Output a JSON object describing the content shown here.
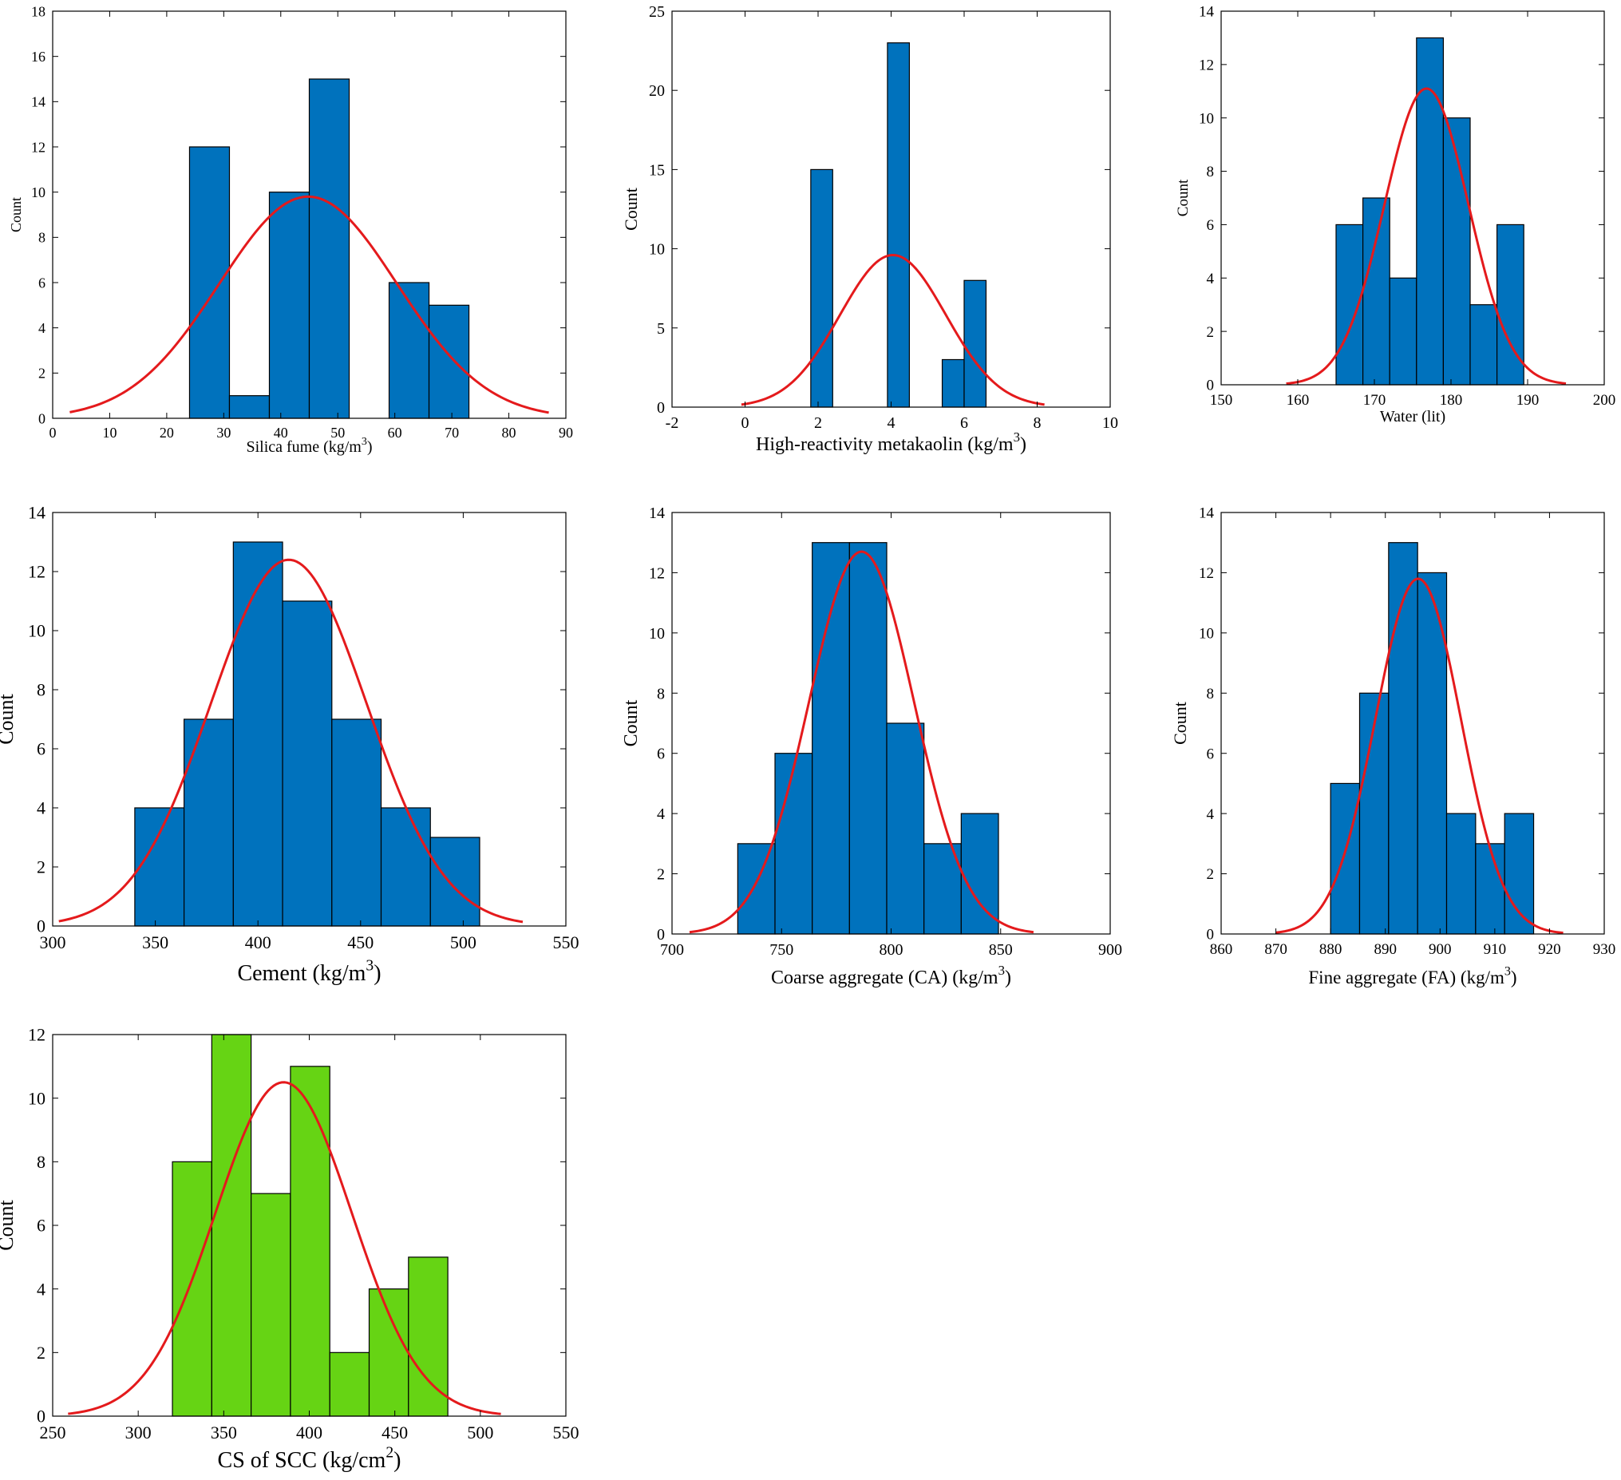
{
  "colors": {
    "bar_blue": "#0072BD",
    "bar_green": "#66D414",
    "curve": "#E41A1C",
    "edge": "#000000"
  },
  "chart_data": [
    {
      "id": "silica-fume",
      "type": "bar",
      "xlabel": "Silica fume (kg/m",
      "xlabel_sup": "3",
      "xlabel_post": ")",
      "ylabel": "Count",
      "xlim": [
        0,
        90
      ],
      "ylim": [
        0,
        18
      ],
      "xticks": [
        0,
        10,
        20,
        30,
        40,
        50,
        60,
        70,
        80,
        90
      ],
      "yticks": [
        0,
        2,
        4,
        6,
        8,
        10,
        12,
        14,
        16,
        18
      ],
      "bins": [
        {
          "x0": 24,
          "x1": 31,
          "count": 12
        },
        {
          "x0": 31,
          "x1": 38,
          "count": 1
        },
        {
          "x0": 38,
          "x1": 45,
          "count": 10
        },
        {
          "x0": 45,
          "x1": 52,
          "count": 15
        },
        {
          "x0": 59,
          "x1": 66,
          "count": 6
        },
        {
          "x0": 66,
          "x1": 73,
          "count": 5
        }
      ],
      "fit": {
        "mean": 44.8,
        "peak": 9.8,
        "sd": 15.6,
        "x_from": 3,
        "x_to": 87
      },
      "bar_color": "blue"
    },
    {
      "id": "metakaolin",
      "type": "bar",
      "xlabel": "High-reactivity metakaolin (kg/m",
      "xlabel_sup": "3",
      "xlabel_post": ")",
      "ylabel": "Count",
      "xlim": [
        -2,
        10
      ],
      "ylim": [
        0,
        25
      ],
      "xticks": [
        -2,
        0,
        2,
        4,
        6,
        8,
        10
      ],
      "yticks": [
        0,
        5,
        10,
        15,
        20,
        25
      ],
      "bins": [
        {
          "x0": 1.8,
          "x1": 2.4,
          "count": 15
        },
        {
          "x0": 3.9,
          "x1": 4.5,
          "count": 23
        },
        {
          "x0": 5.4,
          "x1": 6.0,
          "count": 3
        },
        {
          "x0": 6.0,
          "x1": 6.6,
          "count": 8
        }
      ],
      "fit": {
        "mean": 4.05,
        "peak": 9.6,
        "sd": 1.45,
        "x_from": -0.1,
        "x_to": 8.2
      },
      "bar_color": "blue"
    },
    {
      "id": "water",
      "type": "bar",
      "xlabel": "Water (lit)",
      "xlabel_sup": "",
      "xlabel_post": "",
      "ylabel": "Count",
      "xlim": [
        150,
        200
      ],
      "ylim": [
        0,
        14
      ],
      "xticks": [
        150,
        160,
        170,
        180,
        190,
        200
      ],
      "yticks": [
        0,
        2,
        4,
        6,
        8,
        10,
        12,
        14
      ],
      "bins": [
        {
          "x0": 165,
          "x1": 168.5,
          "count": 6
        },
        {
          "x0": 168.5,
          "x1": 172,
          "count": 7
        },
        {
          "x0": 172,
          "x1": 175.5,
          "count": 4
        },
        {
          "x0": 175.5,
          "x1": 179,
          "count": 13
        },
        {
          "x0": 179,
          "x1": 182.5,
          "count": 10
        },
        {
          "x0": 182.5,
          "x1": 186,
          "count": 3
        },
        {
          "x0": 186,
          "x1": 189.5,
          "count": 6
        }
      ],
      "fit": {
        "mean": 176.8,
        "peak": 11.1,
        "sd": 5.5,
        "x_from": 158.5,
        "x_to": 195
      },
      "bar_color": "blue"
    },
    {
      "id": "cement",
      "type": "bar",
      "xlabel": "Cement (kg/m",
      "xlabel_sup": "3",
      "xlabel_post": ")",
      "ylabel": "Count",
      "xlim": [
        300,
        550
      ],
      "ylim": [
        0,
        14
      ],
      "xticks": [
        300,
        350,
        400,
        450,
        500,
        550
      ],
      "yticks": [
        0,
        2,
        4,
        6,
        8,
        10,
        12,
        14
      ],
      "bins": [
        {
          "x0": 340,
          "x1": 364,
          "count": 4
        },
        {
          "x0": 364,
          "x1": 388,
          "count": 7
        },
        {
          "x0": 388,
          "x1": 412,
          "count": 13
        },
        {
          "x0": 412,
          "x1": 436,
          "count": 11
        },
        {
          "x0": 436,
          "x1": 460,
          "count": 7
        },
        {
          "x0": 460,
          "x1": 484,
          "count": 4
        },
        {
          "x0": 484,
          "x1": 508,
          "count": 3
        }
      ],
      "fit": {
        "mean": 415,
        "peak": 12.4,
        "sd": 38,
        "x_from": 303,
        "x_to": 529
      },
      "bar_color": "blue"
    },
    {
      "id": "coarse-aggregate",
      "type": "bar",
      "xlabel": "Coarse aggregate (CA) (kg/m",
      "xlabel_sup": "3",
      "xlabel_post": ")",
      "ylabel": "Count",
      "xlim": [
        700,
        900
      ],
      "ylim": [
        0,
        14
      ],
      "xticks": [
        700,
        750,
        800,
        850,
        900
      ],
      "yticks": [
        0,
        2,
        4,
        6,
        8,
        10,
        12,
        14
      ],
      "bins": [
        {
          "x0": 730,
          "x1": 747,
          "count": 3
        },
        {
          "x0": 747,
          "x1": 764,
          "count": 6
        },
        {
          "x0": 764,
          "x1": 781,
          "count": 13
        },
        {
          "x0": 781,
          "x1": 798,
          "count": 13
        },
        {
          "x0": 798,
          "x1": 815,
          "count": 7
        },
        {
          "x0": 815,
          "x1": 832,
          "count": 3
        },
        {
          "x0": 832,
          "x1": 849,
          "count": 4
        }
      ],
      "fit": {
        "mean": 786.5,
        "peak": 12.7,
        "sd": 24,
        "x_from": 708,
        "x_to": 865
      },
      "bar_color": "blue"
    },
    {
      "id": "fine-aggregate",
      "type": "bar",
      "xlabel": "Fine aggregate (FA) (kg/m",
      "xlabel_sup": "3",
      "xlabel_post": ")",
      "ylabel": "Count",
      "xlim": [
        860,
        930
      ],
      "ylim": [
        0,
        14
      ],
      "xticks": [
        860,
        870,
        880,
        890,
        900,
        910,
        920,
        930
      ],
      "yticks": [
        0,
        2,
        4,
        6,
        8,
        10,
        12,
        14
      ],
      "bins": [
        {
          "x0": 880,
          "x1": 885.3,
          "count": 5
        },
        {
          "x0": 885.3,
          "x1": 890.6,
          "count": 8
        },
        {
          "x0": 890.6,
          "x1": 895.9,
          "count": 13
        },
        {
          "x0": 895.9,
          "x1": 901.2,
          "count": 12
        },
        {
          "x0": 901.2,
          "x1": 906.5,
          "count": 4
        },
        {
          "x0": 906.5,
          "x1": 911.8,
          "count": 3
        },
        {
          "x0": 911.8,
          "x1": 917.1,
          "count": 4
        }
      ],
      "fit": {
        "mean": 896,
        "peak": 11.8,
        "sd": 7.8,
        "x_from": 870,
        "x_to": 922.5
      },
      "bar_color": "blue"
    },
    {
      "id": "cs-of-scc",
      "type": "bar",
      "xlabel": "CS of SCC (kg/cm",
      "xlabel_sup": "2",
      "xlabel_post": ")",
      "ylabel": "Count",
      "xlim": [
        250,
        550
      ],
      "ylim": [
        0,
        12
      ],
      "xticks": [
        250,
        300,
        350,
        400,
        450,
        500,
        550
      ],
      "yticks": [
        0,
        2,
        4,
        6,
        8,
        10,
        12
      ],
      "bins": [
        {
          "x0": 320,
          "x1": 343,
          "count": 8
        },
        {
          "x0": 343,
          "x1": 366,
          "count": 12
        },
        {
          "x0": 366,
          "x1": 389,
          "count": 7
        },
        {
          "x0": 389,
          "x1": 412,
          "count": 11
        },
        {
          "x0": 412,
          "x1": 435,
          "count": 2
        },
        {
          "x0": 435,
          "x1": 458,
          "count": 4
        },
        {
          "x0": 458,
          "x1": 481,
          "count": 5
        }
      ],
      "fit": {
        "mean": 385,
        "peak": 10.5,
        "sd": 40,
        "x_from": 259,
        "x_to": 512
      },
      "bar_color": "green"
    }
  ]
}
